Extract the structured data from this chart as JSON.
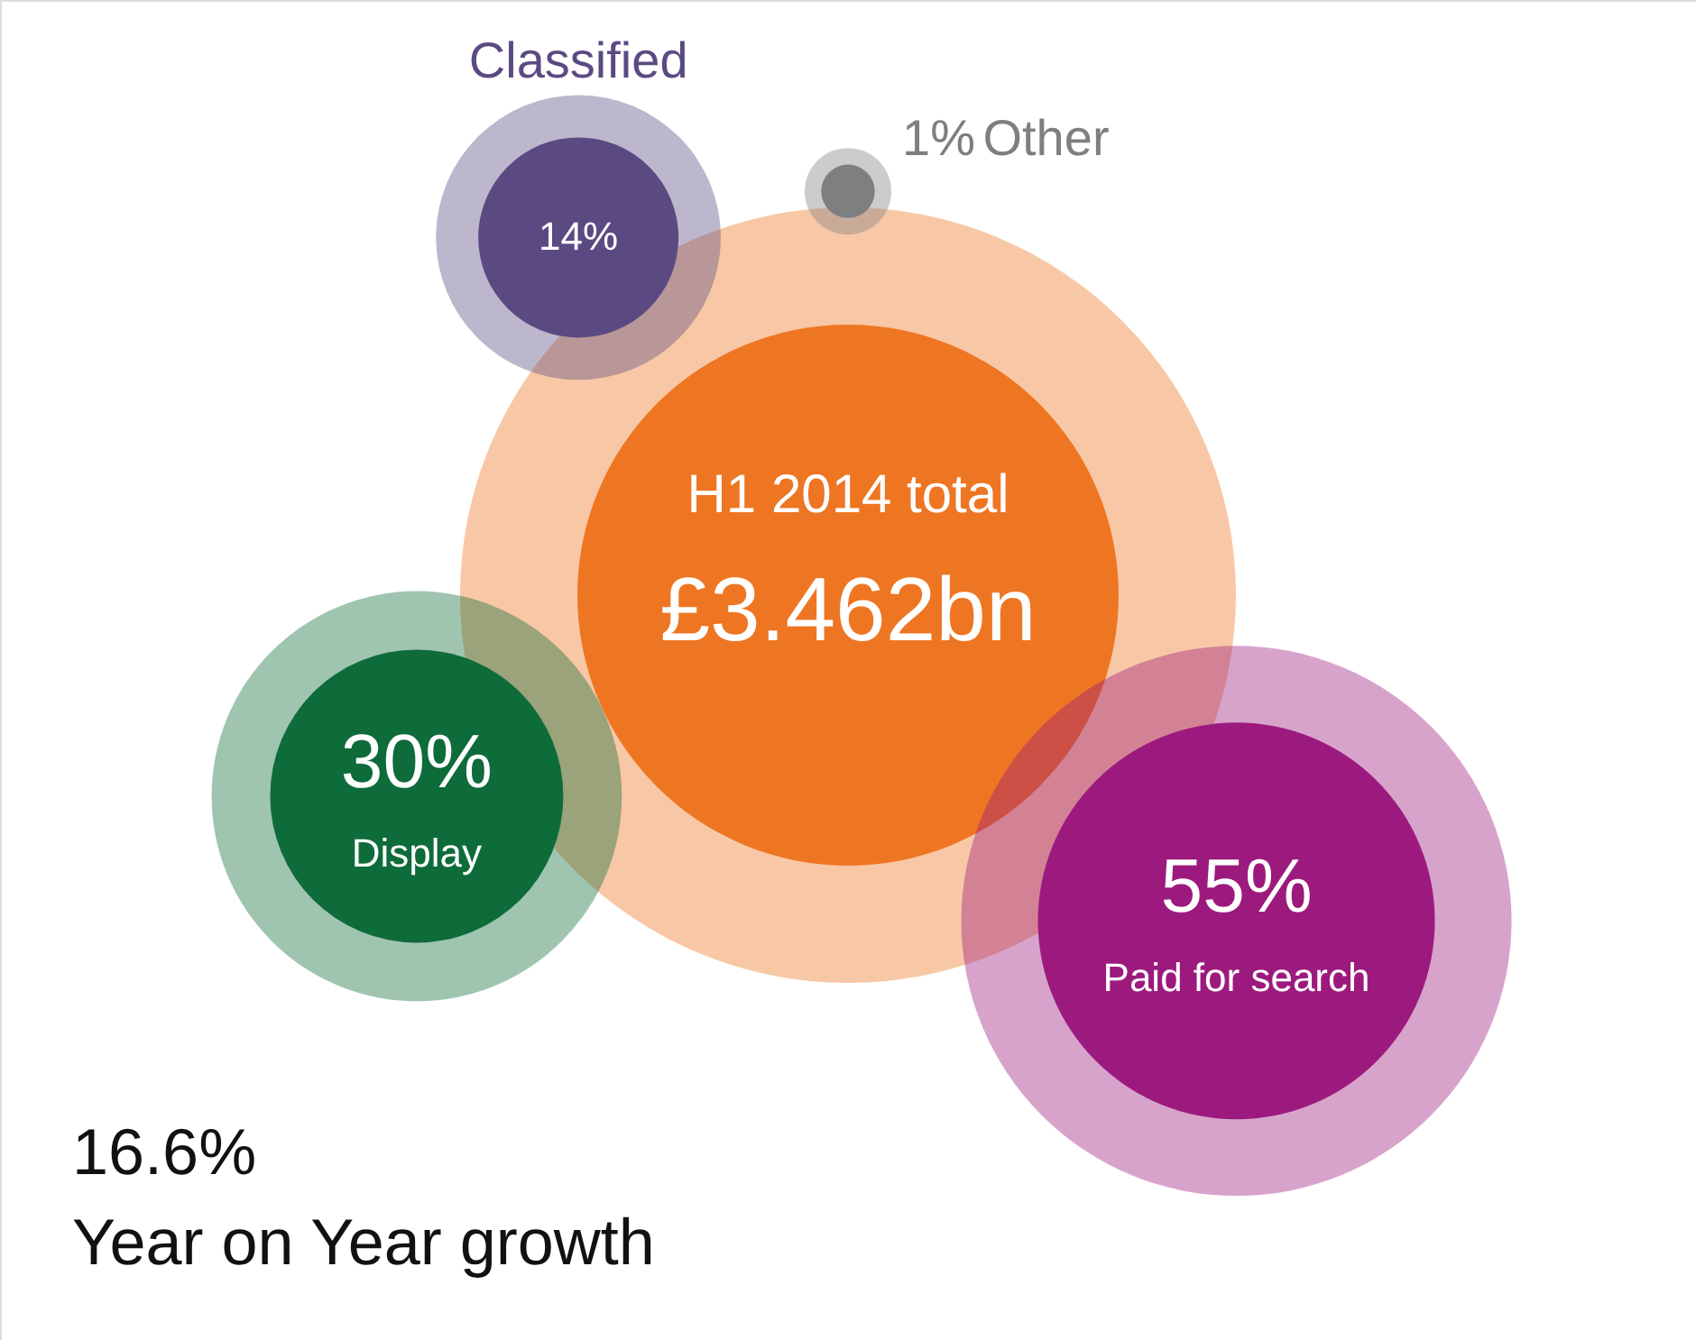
{
  "chart_data": {
    "type": "other",
    "title": "H1 2014 total",
    "subtitle": "£3.462bn",
    "categories": [
      "Classified",
      "Other",
      "Display",
      "Paid for search"
    ],
    "values": [
      14,
      1,
      30,
      55
    ],
    "value_labels": [
      "14%",
      "1%",
      "30%",
      "55%"
    ],
    "colors": [
      "#5b4a82",
      "#7f7f7f",
      "#0e6b3a",
      "#9c1a7e"
    ],
    "annotations": [
      "16.6%",
      "Year on Year growth"
    ]
  }
}
